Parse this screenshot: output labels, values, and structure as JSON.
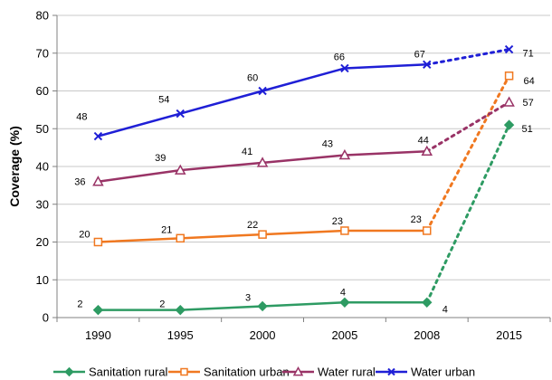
{
  "chart_data": {
    "type": "line",
    "title": "",
    "xlabel": "",
    "ylabel": "Coverage (%)",
    "categories": [
      "1990",
      "1995",
      "2000",
      "2005",
      "2008",
      "2015"
    ],
    "ylim": [
      0,
      80
    ],
    "yticks": [
      "0",
      "10",
      "20",
      "30",
      "40",
      "50",
      "60",
      "70",
      "80"
    ],
    "grid": "horizontal",
    "legend_position": "bottom",
    "projection_from": "2008",
    "series": [
      {
        "name": "Sanitation rural",
        "color": "#2e9b63",
        "marker": "diamond-filled",
        "values": [
          2,
          2,
          3,
          4,
          4,
          51
        ],
        "labels": [
          "2",
          "2",
          "3",
          "4",
          "4",
          "51"
        ]
      },
      {
        "name": "Sanitation urban",
        "color": "#f07820",
        "marker": "square-open",
        "values": [
          20,
          21,
          22,
          23,
          23,
          64
        ],
        "labels": [
          "20",
          "21",
          "22",
          "23",
          "23",
          "64"
        ]
      },
      {
        "name": "Water rural",
        "color": "#993366",
        "marker": "triangle-open",
        "values": [
          36,
          39,
          41,
          43,
          44,
          57
        ],
        "labels": [
          "36",
          "39",
          "41",
          "43",
          "44",
          "57"
        ]
      },
      {
        "name": "Water urban",
        "color": "#1f1fd6",
        "marker": "x",
        "values": [
          48,
          54,
          60,
          66,
          67,
          71
        ],
        "labels": [
          "48",
          "54",
          "60",
          "66",
          "67",
          "71"
        ]
      }
    ]
  }
}
